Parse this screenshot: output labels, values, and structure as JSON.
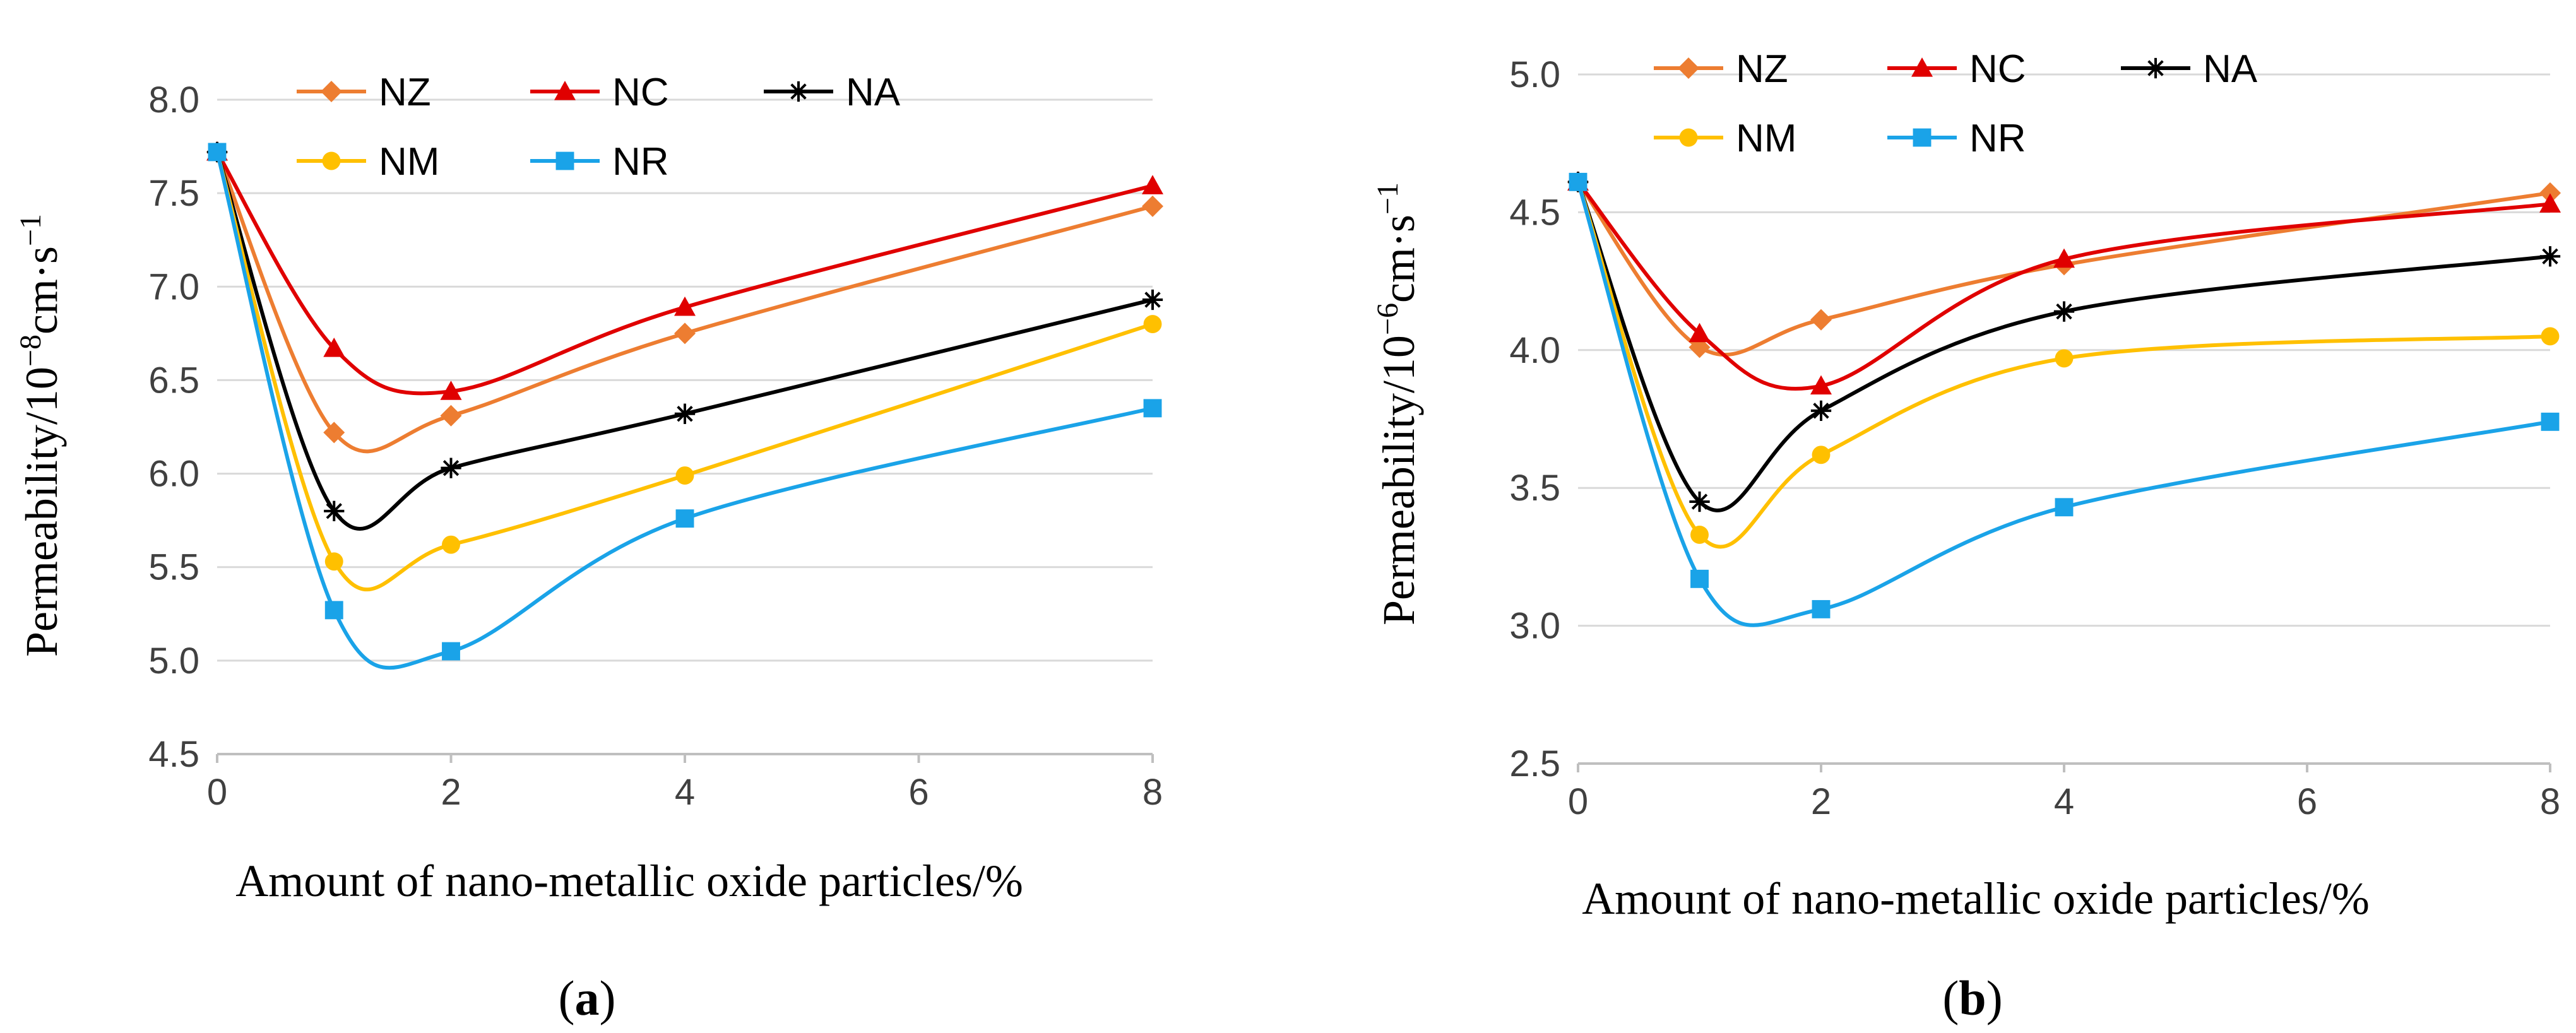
{
  "chart_data": [
    {
      "type": "line",
      "panel_caption": {
        "open": "(",
        "letter": "a",
        "close": ")"
      },
      "xlabel": "Amount of  nano-metallic oxide particles/%",
      "ylabel": {
        "base": "Permeability/10",
        "exp": "−8",
        "mid": "cm·s",
        "exp2": "−1"
      },
      "x": [
        0,
        1,
        2,
        4,
        8
      ],
      "x_ticks": [
        "0",
        "2",
        "4",
        "6",
        "8"
      ],
      "x_tick_values": [
        0,
        2,
        4,
        6,
        8
      ],
      "y_ticks": [
        "4.5",
        "5.0",
        "5.5",
        "6.0",
        "6.5",
        "7.0",
        "7.5",
        "8.0"
      ],
      "ylim": [
        4.5,
        8.0
      ],
      "xlim": [
        0,
        8
      ],
      "x_scale": "piecewise-linear (0→0, 2→2, 4→4, 8→8 plotted at evenly spaced ranks beyond 4: 4→4, 8→8 compressed)",
      "series": [
        {
          "name": "NZ",
          "values": [
            7.72,
            6.22,
            6.31,
            6.75,
            7.43
          ],
          "color": "#ED7D31",
          "marker": "diamond"
        },
        {
          "name": "NC",
          "values": [
            7.72,
            6.67,
            6.44,
            6.89,
            7.54
          ],
          "color": "#E00000",
          "marker": "triangle"
        },
        {
          "name": "NA",
          "values": [
            7.72,
            5.8,
            6.03,
            6.32,
            6.93
          ],
          "color": "#000000",
          "marker": "asterisk"
        },
        {
          "name": "NM",
          "values": [
            7.72,
            5.53,
            5.62,
            5.99,
            6.8
          ],
          "color": "#FFC000",
          "marker": "circle"
        },
        {
          "name": "NR",
          "values": [
            7.72,
            5.27,
            5.05,
            5.76,
            6.35
          ],
          "color": "#1AA3E8",
          "marker": "square"
        }
      ]
    },
    {
      "type": "line",
      "panel_caption": {
        "open": "(",
        "letter": "b",
        "close": ")"
      },
      "xlabel": "Amount of  nano-metallic oxide particles/%",
      "ylabel": {
        "base": "Permeability/10",
        "exp": "−6",
        "mid": "cm·s",
        "exp2": "−1"
      },
      "x": [
        0,
        1,
        2,
        4,
        8
      ],
      "x_ticks": [
        "0",
        "2",
        "4",
        "6",
        "8"
      ],
      "x_tick_values": [
        0,
        2,
        4,
        6,
        8
      ],
      "y_ticks": [
        "2.5",
        "3.0",
        "3.5",
        "4.0",
        "4.5",
        "5.0"
      ],
      "ylim": [
        2.5,
        5.0
      ],
      "xlim": [
        0,
        8
      ],
      "series": [
        {
          "name": "NZ",
          "values": [
            4.61,
            4.01,
            4.11,
            4.31,
            4.57
          ],
          "color": "#ED7D31",
          "marker": "diamond"
        },
        {
          "name": "NC",
          "values": [
            4.61,
            4.06,
            3.87,
            4.33,
            4.53
          ],
          "color": "#E00000",
          "marker": "triangle"
        },
        {
          "name": "NA",
          "values": [
            4.61,
            3.45,
            3.78,
            4.14,
            4.34
          ],
          "color": "#000000",
          "marker": "asterisk"
        },
        {
          "name": "NM",
          "values": [
            4.61,
            3.33,
            3.62,
            3.97,
            4.05
          ],
          "color": "#FFC000",
          "marker": "circle"
        },
        {
          "name": "NR",
          "values": [
            4.61,
            3.17,
            3.06,
            3.43,
            3.74
          ],
          "color": "#1AA3E8",
          "marker": "square"
        }
      ]
    }
  ]
}
